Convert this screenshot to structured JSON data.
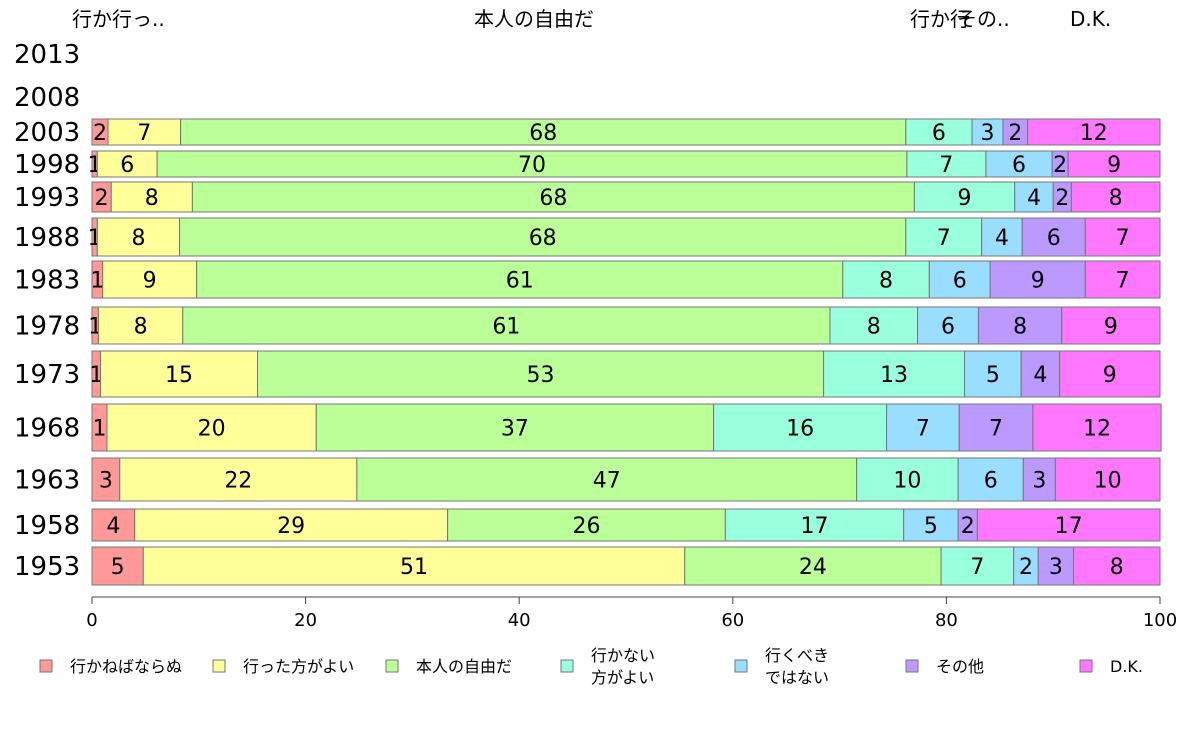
{
  "chart_data": {
    "type": "bar",
    "orientation": "horizontal",
    "stacked": true,
    "header_labels": [
      "行か行っ..",
      "本人の自由だ",
      "行か行",
      "その..",
      "D.K."
    ],
    "categories": [
      "2013",
      "2008",
      "2003",
      "1998",
      "1993",
      "1988",
      "1983",
      "1978",
      "1973",
      "1968",
      "1963",
      "1958",
      "1953"
    ],
    "series": [
      {
        "name": "行かねばならぬ",
        "color": "#FF9999",
        "values": [
          null,
          null,
          1.5,
          0.5,
          1.8,
          0.5,
          1.0,
          0.6,
          0.8,
          1.4,
          2.6,
          4.0,
          4.8
        ]
      },
      {
        "name": "行った方がよい",
        "color": "#FFFF99",
        "values": [
          null,
          null,
          6.8,
          5.6,
          7.6,
          7.7,
          8.8,
          7.9,
          14.7,
          19.6,
          22.2,
          29.3,
          50.7
        ]
      },
      {
        "name": "本人の自由だ",
        "color": "#BBFF99",
        "values": [
          null,
          null,
          67.9,
          70.2,
          67.6,
          68.0,
          60.5,
          60.6,
          53.0,
          37.2,
          46.8,
          26.0,
          24.0
        ]
      },
      {
        "name": "行かない方がよい",
        "color": "#99FFDD",
        "values": [
          null,
          null,
          6.2,
          7.4,
          9.4,
          7.1,
          8.1,
          8.2,
          13.2,
          16.2,
          9.5,
          16.7,
          6.8
        ]
      },
      {
        "name": "行くべきではない",
        "color": "#99DDFF",
        "values": [
          null,
          null,
          2.9,
          6.2,
          3.6,
          3.8,
          5.7,
          5.7,
          5.3,
          6.8,
          6.1,
          5.1,
          2.3
        ]
      },
      {
        "name": "その他",
        "color": "#BB99FF",
        "values": [
          null,
          null,
          2.3,
          1.5,
          1.7,
          5.9,
          8.9,
          7.8,
          3.6,
          6.9,
          3.0,
          1.8,
          3.3
        ]
      },
      {
        "name": "D.K.",
        "color": "#FF77FF",
        "values": [
          null,
          null,
          12.4,
          8.6,
          8.3,
          7.0,
          7.0,
          9.2,
          9.4,
          12.0,
          9.8,
          17.1,
          8.1
        ]
      }
    ],
    "xlim": [
      0,
      100
    ],
    "xticks": [
      0,
      20,
      40,
      60,
      80,
      100
    ],
    "legend_position": "bottom",
    "legend_labels": [
      [
        "行かねばならぬ"
      ],
      [
        "行った方がよい"
      ],
      [
        "本人の自由だ"
      ],
      [
        "行かない",
        "方がよい"
      ],
      [
        "行くべき",
        "ではない"
      ],
      [
        "その他"
      ],
      [
        "D.K."
      ]
    ]
  }
}
